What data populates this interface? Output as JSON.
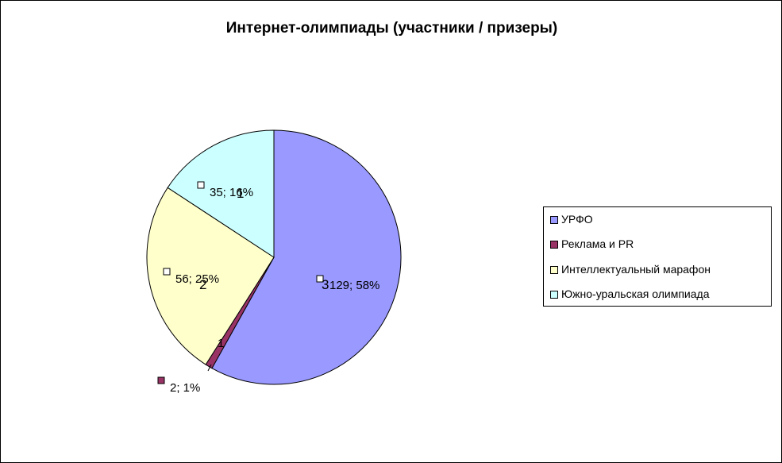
{
  "chart_data": {
    "type": "pie",
    "title": "Интернет-олимпиады  (участники  / призеры)",
    "slices": [
      {
        "name": "УРФО",
        "value": 129,
        "percent": 58,
        "label": "129; 58%",
        "inner": "3",
        "color": "#9999FF"
      },
      {
        "name": "Реклама и PR",
        "value": 2,
        "percent": 1,
        "label": "2; 1%",
        "inner": "1",
        "color": "#993366"
      },
      {
        "name": "Интеллектуальный марафон",
        "value": 56,
        "percent": 25,
        "label": "56; 25%",
        "inner": "2",
        "color": "#FFFFCC"
      },
      {
        "name": "Южно-уральская олимпиада",
        "value": 35,
        "percent": 16,
        "label": "35; 16%",
        "inner": "1",
        "color": "#CCFFFF"
      }
    ],
    "legend_position": "right"
  }
}
